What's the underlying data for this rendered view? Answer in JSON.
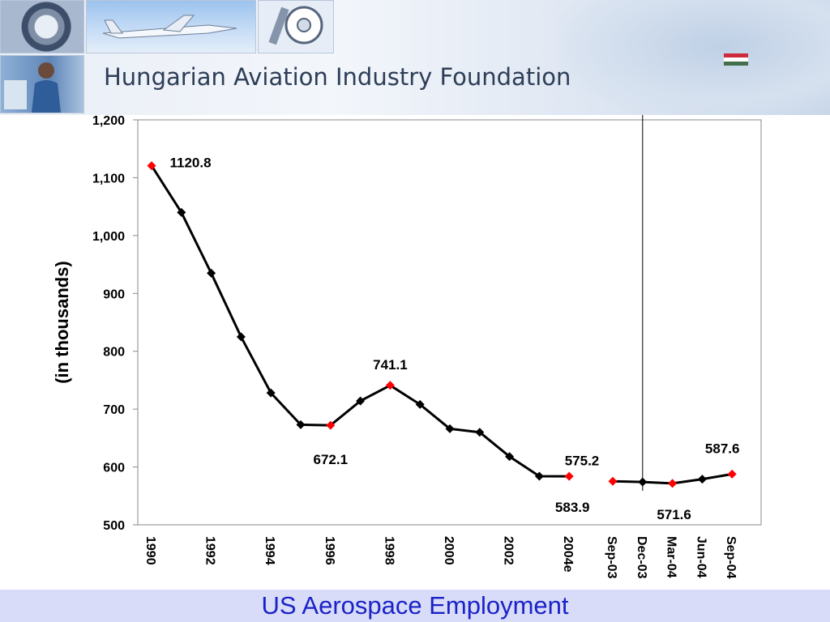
{
  "banner": {
    "title": "Hungarian Aviation Industry Foundation",
    "title_color": "#2d3e57",
    "images": [
      "jet-engine",
      "airplane",
      "tool",
      "worker",
      "europe-map",
      "hungary-flag"
    ],
    "flag_colors": [
      "#cd2a3e",
      "#ffffff",
      "#436f4d"
    ]
  },
  "footer": {
    "title": "US Aerospace Employment",
    "title_color": "#1a22c8",
    "background": "#d8dcf8"
  },
  "chart_data": {
    "type": "line",
    "title": "",
    "xlabel": "",
    "ylabel": "(in thousands)",
    "ylim": [
      500,
      1200
    ],
    "yticks": [
      500,
      600,
      700,
      800,
      900,
      1000,
      1100,
      1200
    ],
    "ytick_labels": [
      "500",
      "600",
      "700",
      "800",
      "900",
      "1,000",
      "1,100",
      "1,200"
    ],
    "grid": false,
    "line_color": "#000000",
    "marker_color": "#000000",
    "highlight_color": "#ff0000",
    "series": [
      {
        "categories": [
          "1990",
          "1991",
          "1992",
          "1993",
          "1994",
          "1995",
          "1996",
          "1997",
          "1998",
          "1999",
          "2000",
          "2001",
          "2002",
          "2003",
          "2004e"
        ],
        "values": [
          1120.8,
          1040,
          935,
          825,
          728,
          673,
          672.1,
          714,
          741.1,
          708,
          666,
          660,
          618,
          584,
          583.9
        ],
        "highlight": [
          0,
          6,
          8,
          14
        ]
      },
      {
        "categories": [
          "Sep-03",
          "Dec-03",
          "Mar-04",
          "Jun-04",
          "Sep-04"
        ],
        "values": [
          575.2,
          574,
          571.6,
          579,
          587.6
        ],
        "highlight": [
          0,
          2,
          4
        ]
      }
    ],
    "x_tick_labels": [
      "1990",
      "1992",
      "1994",
      "1996",
      "1998",
      "2000",
      "2002",
      "2004e",
      "Sep-03",
      "Dec-03",
      "Mar-04",
      "Jun-04",
      "Sep-04"
    ],
    "data_labels": [
      {
        "text": "1120.8",
        "series": 0,
        "index": 0
      },
      {
        "text": "672.1",
        "series": 0,
        "index": 6
      },
      {
        "text": "741.1",
        "series": 0,
        "index": 8
      },
      {
        "text": "583.9",
        "series": 0,
        "index": 14
      },
      {
        "text": "575.2",
        "series": 1,
        "index": 0
      },
      {
        "text": "571.6",
        "series": 1,
        "index": 2
      },
      {
        "text": "587.6",
        "series": 1,
        "index": 4
      }
    ],
    "divider_after": "2004e"
  }
}
